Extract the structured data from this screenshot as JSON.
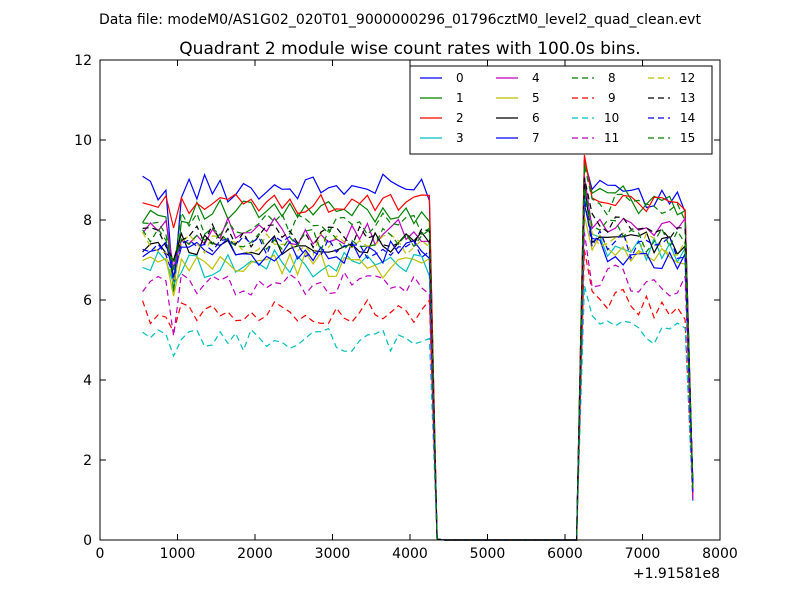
{
  "figure": {
    "suptitle": "Data file: modeM0/AS1G02_020T01_9000000296_01796cztM0_level2_quad_clean.evt"
  },
  "chart_data": {
    "type": "line",
    "title": "Quadrant 2 module wise count rates with 100.0s bins.",
    "xlabel": "",
    "ylabel": "",
    "x_offset_label": "+1.91581e8",
    "xlim": [
      0,
      8000
    ],
    "ylim": [
      0,
      12
    ],
    "xticks": [
      0,
      1000,
      2000,
      3000,
      4000,
      5000,
      6000,
      7000,
      8000
    ],
    "yticks": [
      0,
      2,
      4,
      6,
      8,
      10,
      12
    ],
    "grid": false,
    "legend_position": "top-right",
    "legend_columns": 4,
    "colors": {
      "blue": "#0000ff",
      "green": "#008000",
      "red": "#ff0000",
      "cyan": "#00bfbf",
      "magenta": "#bf00bf",
      "olive": "#bfbf00",
      "black": "#000000"
    },
    "segments": {
      "first": {
        "x": [
          550,
          650,
          750,
          850,
          950,
          1050,
          1150,
          1250,
          1350,
          1450,
          1550,
          1650,
          1750,
          1850,
          1950,
          2050,
          2150,
          2250,
          2350,
          2450,
          2550,
          2650,
          2750,
          2850,
          2950,
          3050,
          3150,
          3250,
          3350,
          3450,
          3550,
          3650,
          3750,
          3850,
          3950,
          4050,
          4150,
          4250
        ],
        "drop": [
          {
            "x": 4350,
            "y_frac": 0.02
          },
          {
            "x": 4450,
            "y_frac": 0
          }
        ]
      },
      "gap": {
        "x": [
          4450,
          6150
        ],
        "y": 0
      },
      "second": {
        "x": [
          6150,
          6250,
          6350,
          6450,
          6550,
          6650,
          6750,
          6850,
          6950,
          7050,
          7150,
          7250,
          7350,
          7450,
          7550,
          7650
        ],
        "rise_start": {
          "x": 6150,
          "y": 0
        }
      }
    },
    "series": [
      {
        "name": "0",
        "color": "blue",
        "dash": "solid",
        "base1": 8.8,
        "base2": 8.7,
        "amp": 0.35,
        "dip1": 6.3,
        "end": 1.3
      },
      {
        "name": "1",
        "color": "green",
        "dash": "solid",
        "base1": 8.2,
        "base2": 8.6,
        "amp": 0.3,
        "dip1": 6.2,
        "end": 1.2
      },
      {
        "name": "2",
        "color": "red",
        "dash": "solid",
        "base1": 8.4,
        "base2": 8.6,
        "amp": 0.25,
        "dip1": 7.8,
        "end": 1.1
      },
      {
        "name": "3",
        "color": "cyan",
        "dash": "solid",
        "base1": 6.9,
        "base2": 7.4,
        "amp": 0.35,
        "dip1": 6.4,
        "end": 1.2
      },
      {
        "name": "4",
        "color": "magenta",
        "dash": "solid",
        "base1": 7.7,
        "base2": 7.9,
        "amp": 0.35,
        "dip1": 6.8,
        "end": 1.1
      },
      {
        "name": "5",
        "color": "olive",
        "dash": "solid",
        "base1": 6.9,
        "base2": 7.3,
        "amp": 0.35,
        "dip1": 6.1,
        "end": 1.2
      },
      {
        "name": "6",
        "color": "black",
        "dash": "solid",
        "base1": 7.4,
        "base2": 7.6,
        "amp": 0.3,
        "dip1": 7.0,
        "end": 1.4
      },
      {
        "name": "7",
        "color": "blue",
        "dash": "solid",
        "base1": 7.2,
        "base2": 7.2,
        "amp": 0.35,
        "dip1": 6.6,
        "end": 1.2
      },
      {
        "name": "8",
        "color": "green",
        "dash": "dashed",
        "base1": 7.9,
        "base2": 8.4,
        "amp": 0.3,
        "dip1": 6.7,
        "end": 1.3
      },
      {
        "name": "9",
        "color": "red",
        "dash": "dashed",
        "base1": 5.7,
        "base2": 6.0,
        "amp": 0.3,
        "dip1": 5.2,
        "end": 1.0
      },
      {
        "name": "10",
        "color": "cyan",
        "dash": "dashed",
        "base1": 5.0,
        "base2": 5.4,
        "amp": 0.3,
        "dip1": 4.6,
        "end": 0.9
      },
      {
        "name": "11",
        "color": "magenta",
        "dash": "dashed",
        "base1": 6.4,
        "base2": 6.6,
        "amp": 0.3,
        "dip1": 5.1,
        "end": 1.0
      },
      {
        "name": "12",
        "color": "olive",
        "dash": "dashed",
        "base1": 7.4,
        "base2": 7.6,
        "amp": 0.3,
        "dip1": 6.4,
        "end": 1.2
      },
      {
        "name": "13",
        "color": "black",
        "dash": "dashed",
        "base1": 7.6,
        "base2": 7.9,
        "amp": 0.3,
        "dip1": 7.0,
        "end": 1.3
      },
      {
        "name": "14",
        "color": "blue",
        "dash": "dashed",
        "base1": 7.3,
        "base2": 7.5,
        "amp": 0.3,
        "dip1": 6.6,
        "end": 1.2
      },
      {
        "name": "15",
        "color": "green",
        "dash": "dashed",
        "base1": 7.5,
        "base2": 7.7,
        "amp": 0.3,
        "dip1": 6.9,
        "end": 1.2
      }
    ]
  }
}
